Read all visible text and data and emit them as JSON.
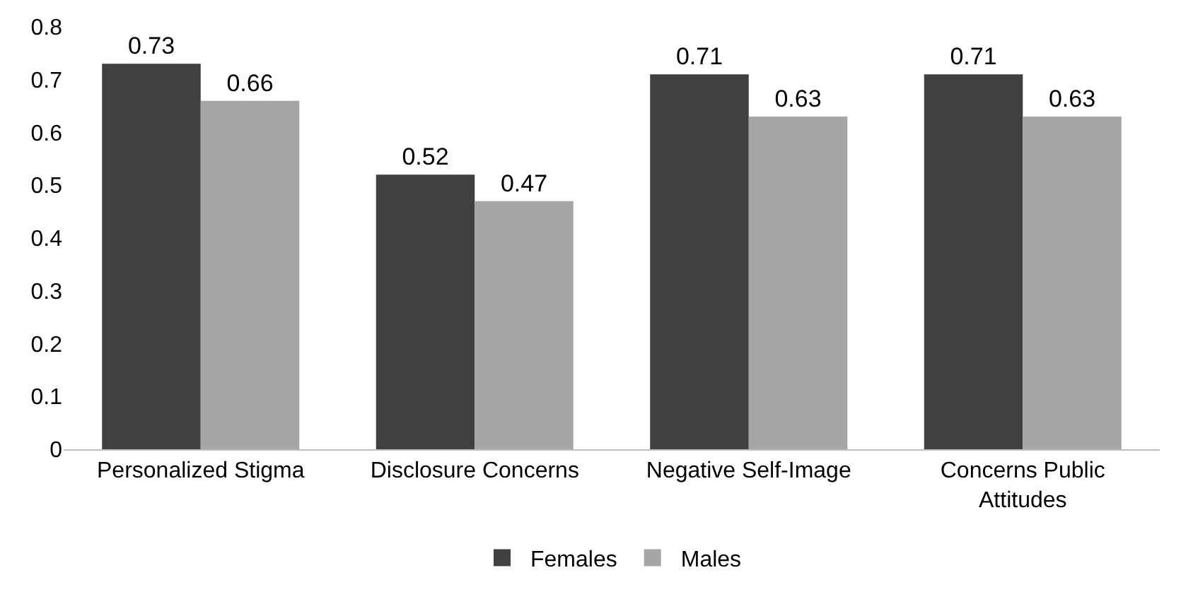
{
  "chart_data": {
    "type": "bar",
    "categories": [
      "Personalized Stigma",
      "Disclosure Concerns",
      "Negative Self-Image",
      "Concerns Public Attitudes"
    ],
    "series": [
      {
        "name": "Females",
        "color": "#404040",
        "values": [
          0.73,
          0.52,
          0.71,
          0.71
        ]
      },
      {
        "name": "Males",
        "color": "#a6a6a6",
        "values": [
          0.66,
          0.47,
          0.63,
          0.63
        ]
      }
    ],
    "ylim": [
      0,
      0.8
    ],
    "yticks": [
      {
        "value": 0,
        "label": "0"
      },
      0.1,
      0.2,
      0.3,
      0.4,
      0.5,
      0.6,
      0.7,
      0.8
    ],
    "data_labels": true,
    "legend": "bottom"
  }
}
